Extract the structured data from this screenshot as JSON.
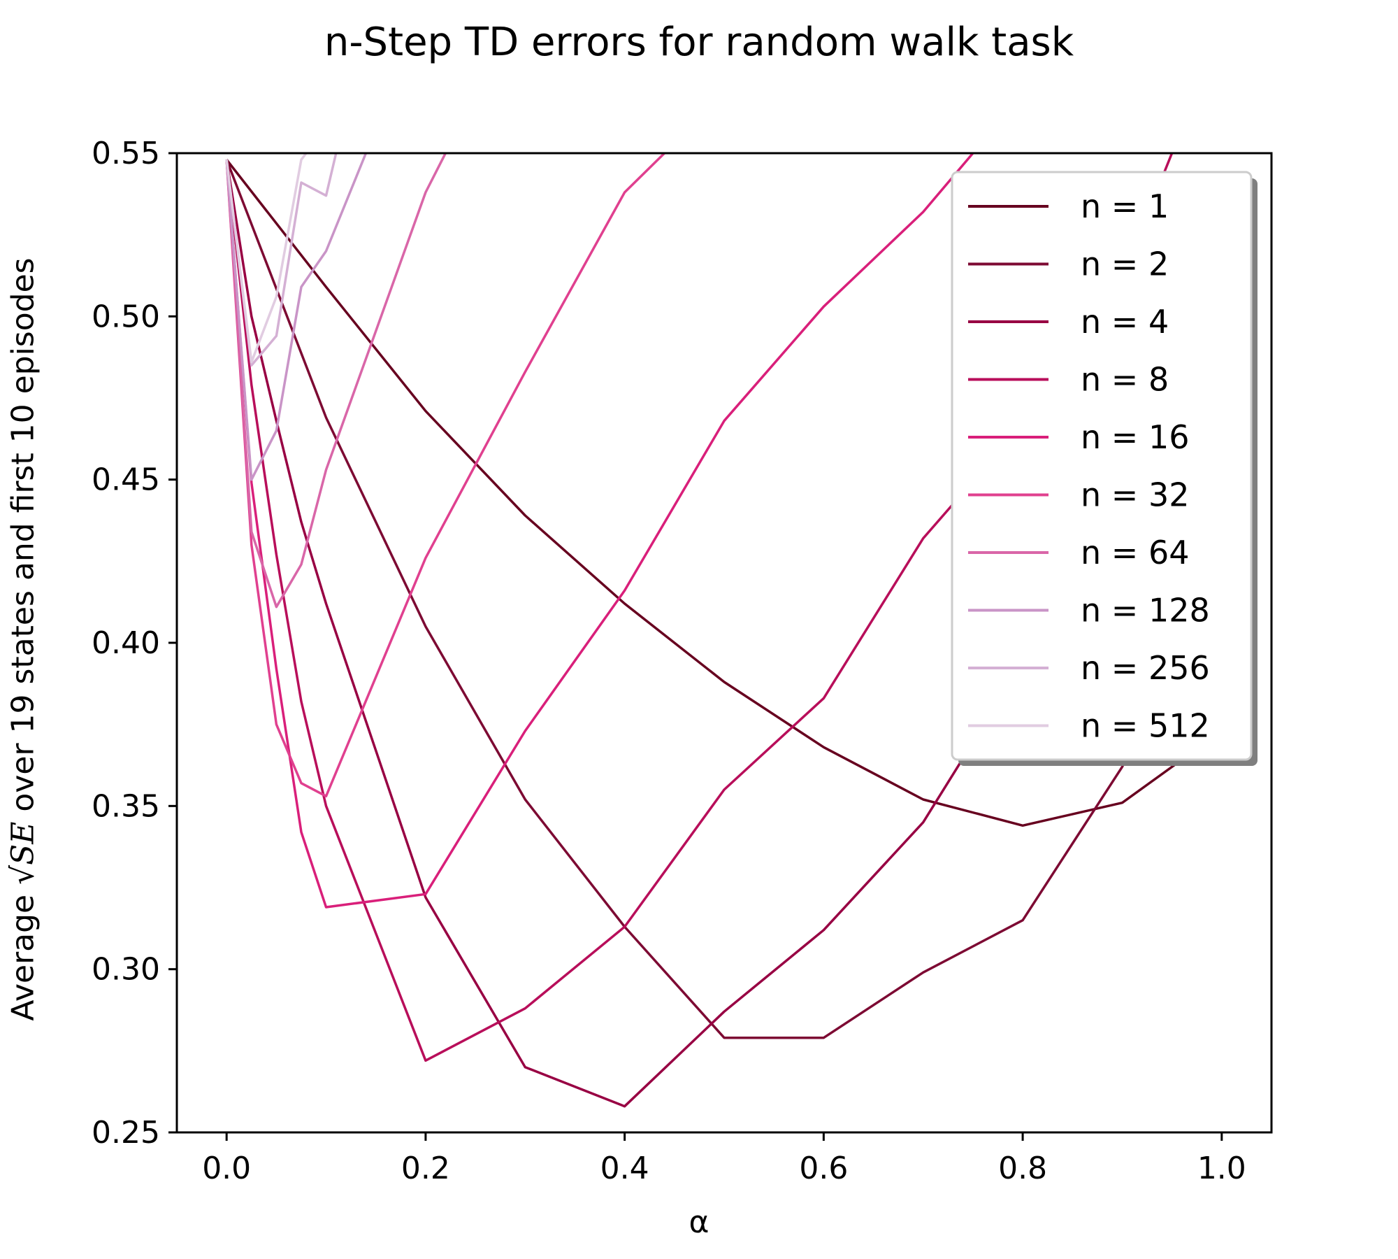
{
  "chart_data": {
    "type": "line",
    "title": "n-Step TD errors for random walk task",
    "xlabel": "α",
    "ylabel": {
      "prefix": "Average ",
      "radical": "√",
      "symbol": "SE",
      "suffix": "  over 19 states and first 10 episodes"
    },
    "xlim": [
      -0.05,
      1.05
    ],
    "ylim": [
      0.25,
      0.55
    ],
    "xticks": [
      "0.0",
      "0.2",
      "0.4",
      "0.6",
      "0.8",
      "1.0"
    ],
    "yticks": [
      "0.25",
      "0.30",
      "0.35",
      "0.40",
      "0.45",
      "0.50",
      "0.55"
    ],
    "grid": false,
    "legend_position": "upper-right",
    "series": [
      {
        "name": "n = 1",
        "color": "#67001f",
        "x": [
          0.0,
          0.1,
          0.2,
          0.3,
          0.4,
          0.5,
          0.6,
          0.7,
          0.8,
          0.9,
          1.0
        ],
        "y": [
          0.548,
          0.509,
          0.471,
          0.439,
          0.412,
          0.388,
          0.368,
          0.352,
          0.344,
          0.351,
          0.373
        ]
      },
      {
        "name": "n = 2",
        "color": "#7d0a33",
        "x": [
          0.0,
          0.1,
          0.2,
          0.3,
          0.4,
          0.5,
          0.6,
          0.7,
          0.8,
          0.9,
          1.0
        ],
        "y": [
          0.548,
          0.469,
          0.405,
          0.352,
          0.313,
          0.279,
          0.279,
          0.299,
          0.315,
          0.362,
          0.428
        ]
      },
      {
        "name": "n = 4",
        "color": "#980043",
        "x": [
          0.0,
          0.025,
          0.05,
          0.075,
          0.1,
          0.2,
          0.3,
          0.4,
          0.5,
          0.6,
          0.7,
          0.8,
          0.9,
          1.0
        ],
        "y": [
          0.548,
          0.5,
          0.468,
          0.437,
          0.412,
          0.322,
          0.27,
          0.258,
          0.287,
          0.312,
          0.345,
          0.394,
          0.452,
          0.52
        ]
      },
      {
        "name": "n = 8",
        "color": "#b80e5a",
        "x": [
          0.0,
          0.025,
          0.05,
          0.075,
          0.1,
          0.2,
          0.3,
          0.4,
          0.5,
          0.6,
          0.7,
          0.8,
          0.9,
          0.95
        ],
        "y": [
          0.548,
          0.479,
          0.427,
          0.382,
          0.35,
          0.272,
          0.288,
          0.313,
          0.355,
          0.383,
          0.432,
          0.467,
          0.512,
          0.55
        ]
      },
      {
        "name": "n = 16",
        "color": "#d91f7a",
        "x": [
          0.0,
          0.025,
          0.05,
          0.075,
          0.1,
          0.2,
          0.3,
          0.4,
          0.5,
          0.6,
          0.7,
          0.75
        ],
        "y": [
          0.548,
          0.449,
          0.392,
          0.342,
          0.319,
          0.323,
          0.373,
          0.416,
          0.468,
          0.503,
          0.532,
          0.55
        ]
      },
      {
        "name": "n = 32",
        "color": "#e0408f",
        "x": [
          0.0,
          0.025,
          0.05,
          0.075,
          0.1,
          0.2,
          0.3,
          0.4,
          0.44
        ],
        "y": [
          0.548,
          0.43,
          0.375,
          0.357,
          0.353,
          0.426,
          0.483,
          0.538,
          0.55
        ]
      },
      {
        "name": "n = 64",
        "color": "#d966a8",
        "x": [
          0.0,
          0.025,
          0.05,
          0.075,
          0.1,
          0.2,
          0.22
        ],
        "y": [
          0.548,
          0.434,
          0.411,
          0.424,
          0.453,
          0.538,
          0.55
        ]
      },
      {
        "name": "n = 128",
        "color": "#c994c7",
        "x": [
          0.0,
          0.025,
          0.05,
          0.075,
          0.1,
          0.14
        ],
        "y": [
          0.548,
          0.45,
          0.465,
          0.509,
          0.52,
          0.55
        ]
      },
      {
        "name": "n = 256",
        "color": "#d4b0d4",
        "x": [
          0.0,
          0.025,
          0.05,
          0.075,
          0.1,
          0.11
        ],
        "y": [
          0.548,
          0.485,
          0.494,
          0.541,
          0.537,
          0.55
        ]
      },
      {
        "name": "n = 512",
        "color": "#e1cce1",
        "x": [
          0.0,
          0.025,
          0.05,
          0.075,
          0.08
        ],
        "y": [
          0.548,
          0.486,
          0.506,
          0.548,
          0.55
        ]
      }
    ]
  }
}
